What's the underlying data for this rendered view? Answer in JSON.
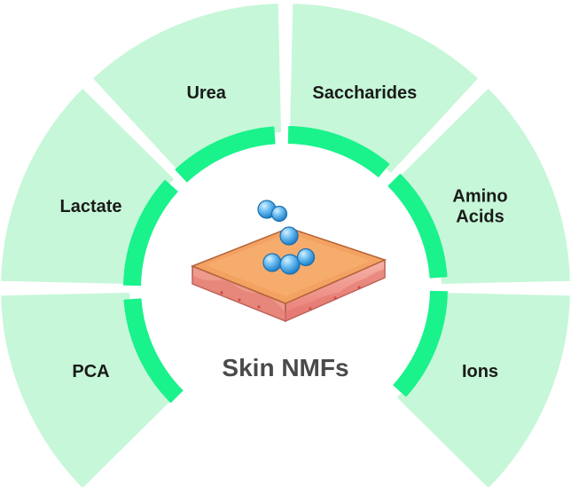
{
  "center": {
    "title": "Skin NMFs"
  },
  "segments": [
    {
      "id": "pca",
      "label_lines": [
        "PCA"
      ]
    },
    {
      "id": "lactate",
      "label_lines": [
        "Lactate"
      ]
    },
    {
      "id": "urea",
      "label_lines": [
        "Urea"
      ]
    },
    {
      "id": "saccharides",
      "label_lines": [
        "Saccharides"
      ]
    },
    {
      "id": "amino-acids",
      "label_lines": [
        "Amino",
        "Acids"
      ]
    },
    {
      "id": "ions",
      "label_lines": [
        "Ions"
      ]
    }
  ],
  "colors": {
    "segment_fill": "#c6f7d8",
    "segment_stroke": "#d8d8d8",
    "arrow_ring": "#1af28c",
    "skin_top": "#f4a262",
    "skin_side": "#f08f86",
    "molecule": "#5bb4f0",
    "title_text": "#4a4a4a"
  },
  "icons": [
    "skin-layer-icon",
    "molecule-icon"
  ]
}
